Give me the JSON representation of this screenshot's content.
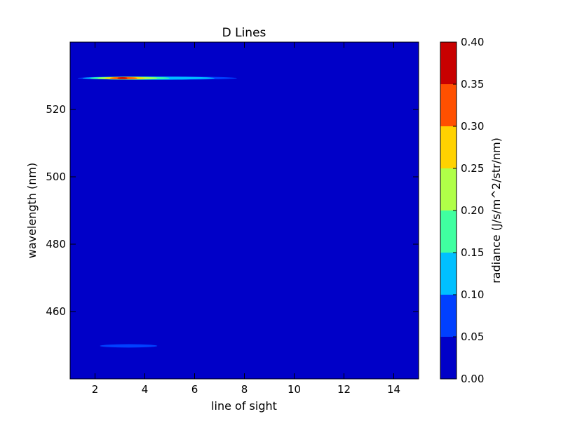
{
  "chart_data": {
    "type": "heatmap",
    "title": "D Lines",
    "xlabel": "line of sight",
    "ylabel": "wavelength (nm)",
    "xlim": [
      1,
      15
    ],
    "ylim": [
      440,
      540
    ],
    "xticks": [
      2,
      4,
      6,
      8,
      10,
      12,
      14
    ],
    "yticks": [
      460,
      480,
      500,
      520
    ],
    "colorbar": {
      "label": "radiance (J/s/m^2/str/nm)",
      "levels": [
        0.0,
        0.05,
        0.1,
        0.15,
        0.2,
        0.25,
        0.3,
        0.35,
        0.4
      ],
      "tick_labels": [
        "0.00",
        "0.05",
        "0.10",
        "0.15",
        "0.20",
        "0.25",
        "0.30",
        "0.35",
        "0.40"
      ],
      "colors": [
        "#0000c8",
        "#0040ff",
        "#00c0ff",
        "#40ffa0",
        "#b0ff48",
        "#ffd200",
        "#ff5000",
        "#c80000"
      ]
    },
    "background_level": 0,
    "features": [
      {
        "name": "band 529nm",
        "wavelength": 529.3,
        "segments": [
          {
            "x0": 1.3,
            "x1": 7.7,
            "level": 1
          },
          {
            "x0": 1.5,
            "x1": 6.8,
            "level": 2
          },
          {
            "x0": 1.8,
            "x1": 5.0,
            "level": 3
          },
          {
            "x0": 2.1,
            "x1": 4.5,
            "level": 4
          },
          {
            "x0": 2.4,
            "x1": 4.0,
            "level": 5
          },
          {
            "x0": 2.6,
            "x1": 3.7,
            "level": 6
          },
          {
            "x0": 2.9,
            "x1": 3.3,
            "level": 7
          }
        ]
      },
      {
        "name": "band 450nm",
        "wavelength": 449.8,
        "segments": [
          {
            "x0": 2.2,
            "x1": 4.5,
            "level": 1
          }
        ]
      }
    ]
  }
}
